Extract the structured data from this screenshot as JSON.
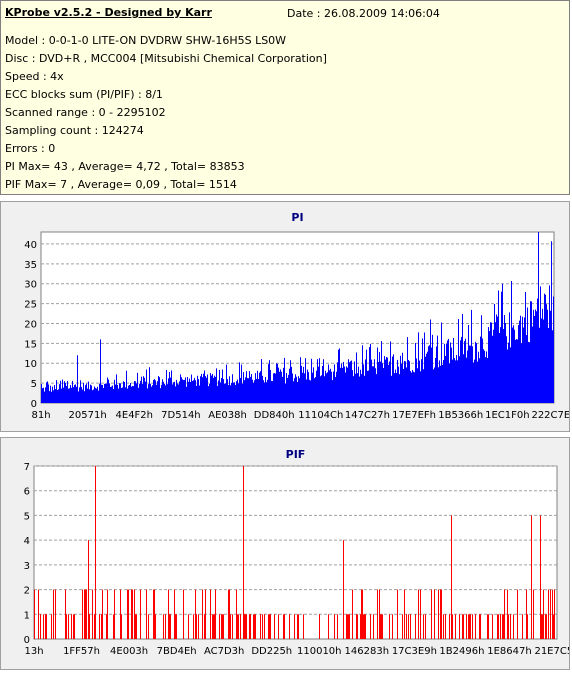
{
  "header": {
    "title": "KProbe v2.5.2 - Designed by Karr",
    "date": "Date : 26.08.2009 14:06:04",
    "lines": [
      "Model : 0-0-1-0 LITE-ON DVDRW SHW-16H5S  LS0W",
      "Disc : DVD+R , MCC004 [Mitsubishi Chemical Corporation]",
      "Speed : 4x",
      "ECC blocks sum (PI/PIF) : 8/1",
      "Scanned range : 0 - 2295102",
      "Sampling count : 124274",
      "Errors : 0",
      "PI Max= 43 , Average= 4,72 , Total= 83853",
      "PIF Max= 7 , Average= 0,09 , Total= 1514"
    ]
  },
  "chart_data": [
    {
      "type": "bar",
      "title": "PI",
      "color": "#0000ff",
      "ylim": [
        0,
        43
      ],
      "y_ticks": [
        0,
        5,
        10,
        15,
        20,
        25,
        30,
        35,
        40
      ],
      "x_tick_labels": [
        "81h",
        "20571h",
        "4E4F2h",
        "7D514h",
        "AE038h",
        "DD840h",
        "11104Ch",
        "147C27h",
        "17E7EFh",
        "1B5366h",
        "1EC1F0h",
        "222C7Eh"
      ],
      "grid": true,
      "max": 43,
      "average": 4.72,
      "profile": [
        {
          "x": 0.0,
          "base": 2.5,
          "peak": 6
        },
        {
          "x": 0.2,
          "base": 3.5,
          "peak": 9
        },
        {
          "x": 0.5,
          "base": 5,
          "peak": 12
        },
        {
          "x": 0.7,
          "base": 7,
          "peak": 17
        },
        {
          "x": 0.85,
          "base": 10,
          "peak": 25
        },
        {
          "x": 0.95,
          "base": 15,
          "peak": 35
        },
        {
          "x": 1.0,
          "base": 18,
          "peak": 43
        }
      ],
      "spikes": [
        [
          0.07,
          12
        ],
        [
          0.115,
          16
        ],
        [
          0.21,
          9
        ],
        [
          0.4,
          8
        ],
        [
          0.6,
          11
        ],
        [
          0.76,
          21
        ],
        [
          0.9,
          30
        ],
        [
          0.97,
          43
        ]
      ]
    },
    {
      "type": "bar",
      "title": "PIF",
      "color": "#ff0000",
      "ylim": [
        0,
        7
      ],
      "y_ticks": [
        0,
        1,
        2,
        3,
        4,
        5,
        6,
        7
      ],
      "x_tick_labels": [
        "13h",
        "1FF57h",
        "4E003h",
        "7BD4Eh",
        "AC7D3h",
        "DD225h",
        "110010h",
        "146283h",
        "17C3E9h",
        "1B2496h",
        "1E8647h",
        "21E7C5h"
      ],
      "grid": true,
      "max": 7,
      "average": 0.09,
      "spikes": [
        [
          0.104,
          4
        ],
        [
          0.116,
          7
        ],
        [
          0.4,
          7
        ],
        [
          0.591,
          4
        ],
        [
          0.798,
          5
        ],
        [
          0.953,
          5
        ],
        [
          0.97,
          5
        ]
      ]
    }
  ]
}
